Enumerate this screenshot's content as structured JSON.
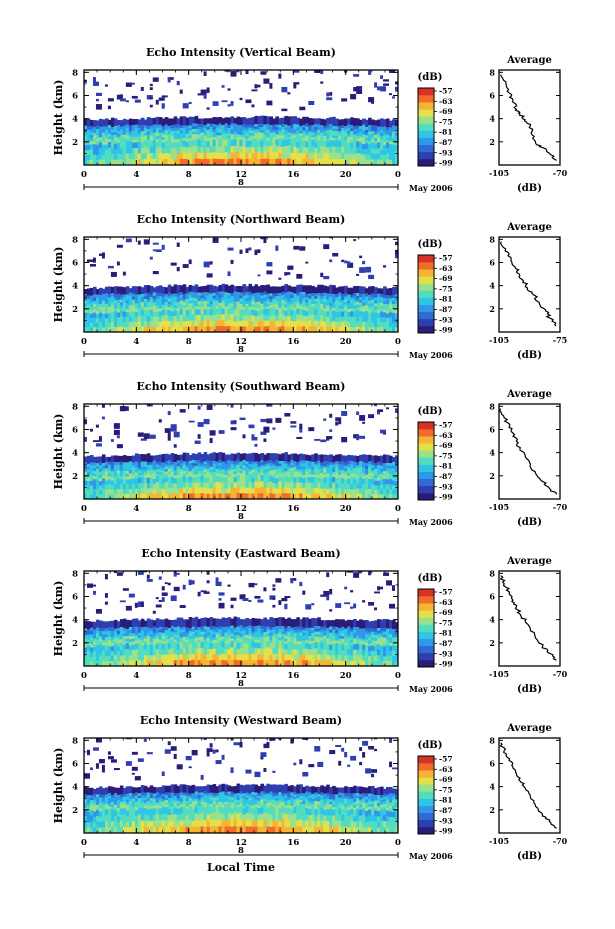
{
  "chart_data": [
    {
      "type": "heatmap",
      "title": "Echo Intensity (Vertical Beam)",
      "ylabel": "Height (km)",
      "x_ticks": [
        "0",
        "4",
        "8",
        "12",
        "16",
        "20",
        "0"
      ],
      "y_ticks": [
        "2",
        "4",
        "6",
        "8"
      ],
      "date_label": "8",
      "month_label": "May 2006",
      "colorbar": {
        "unit": "(dB)",
        "ticks": [
          "-57",
          "-63",
          "-69",
          "-75",
          "-81",
          "-87",
          "-93",
          "-99"
        ]
      },
      "layers": {
        "top_km": 3.9,
        "low_top_km": 3.3,
        "core_top_km": 1.8
      },
      "average": {
        "title": "Average",
        "xlabel": "(dB)",
        "x_ticks": [
          "-105",
          "-70"
        ],
        "y_ticks": [
          "2",
          "4",
          "6",
          "8"
        ],
        "profile": [
          [
            -72,
            0.4
          ],
          [
            -76,
            1.0
          ],
          [
            -80,
            1.5
          ],
          [
            -84,
            1.9
          ],
          [
            -86,
            2.6
          ],
          [
            -87,
            3.4
          ],
          [
            -90,
            3.9
          ],
          [
            -93,
            4.4
          ],
          [
            -95,
            4.8
          ],
          [
            -97,
            5.6
          ],
          [
            -99,
            6.2
          ],
          [
            -101,
            7.0
          ],
          [
            -104,
            7.8
          ]
        ]
      }
    },
    {
      "type": "heatmap",
      "title": "Echo Intensity (Northward Beam)",
      "ylabel": "Height (km)",
      "x_ticks": [
        "0",
        "4",
        "8",
        "12",
        "16",
        "20",
        "0"
      ],
      "y_ticks": [
        "2",
        "4",
        "6",
        "8"
      ],
      "date_label": "8",
      "month_label": "May 2006",
      "colorbar": {
        "unit": "(dB)",
        "ticks": [
          "-57",
          "-63",
          "-69",
          "-75",
          "-81",
          "-87",
          "-93",
          "-99"
        ]
      },
      "layers": {
        "top_km": 3.8,
        "low_top_km": 3.2,
        "core_top_km": 1.6
      },
      "average": {
        "title": "Average",
        "xlabel": "(dB)",
        "x_ticks": [
          "-105",
          "-75"
        ],
        "y_ticks": [
          "2",
          "4",
          "6",
          "8"
        ],
        "profile": [
          [
            -77,
            0.5
          ],
          [
            -80,
            1.2
          ],
          [
            -82,
            1.8
          ],
          [
            -85,
            2.4
          ],
          [
            -88,
            3.2
          ],
          [
            -91,
            3.8
          ],
          [
            -93,
            4.4
          ],
          [
            -95,
            5.0
          ],
          [
            -97,
            5.6
          ],
          [
            -99,
            6.3
          ],
          [
            -102,
            7.0
          ],
          [
            -104,
            7.8
          ]
        ]
      }
    },
    {
      "type": "heatmap",
      "title": "Echo Intensity (Southward Beam)",
      "ylabel": "Height (km)",
      "x_ticks": [
        "0",
        "4",
        "8",
        "12",
        "16",
        "20",
        "0"
      ],
      "y_ticks": [
        "2",
        "4",
        "6",
        "8"
      ],
      "date_label": "8",
      "month_label": "May 2006",
      "colorbar": {
        "unit": "(dB)",
        "ticks": [
          "-57",
          "-63",
          "-69",
          "-75",
          "-81",
          "-87",
          "-93",
          "-99"
        ]
      },
      "layers": {
        "top_km": 3.7,
        "low_top_km": 3.1,
        "core_top_km": 1.6
      },
      "average": {
        "title": "Average",
        "xlabel": "(dB)",
        "x_ticks": [
          "-105",
          "-70"
        ],
        "y_ticks": [
          "2",
          "4",
          "6",
          "8"
        ],
        "profile": [
          [
            -72,
            0.4
          ],
          [
            -76,
            0.9
          ],
          [
            -80,
            1.5
          ],
          [
            -84,
            2.2
          ],
          [
            -87,
            3.0
          ],
          [
            -90,
            3.8
          ],
          [
            -93,
            4.3
          ],
          [
            -95,
            5.0
          ],
          [
            -97,
            5.7
          ],
          [
            -99,
            6.3
          ],
          [
            -102,
            7.0
          ],
          [
            -104,
            7.8
          ]
        ]
      }
    },
    {
      "type": "heatmap",
      "title": "Echo Intensity (Eastward Beam)",
      "ylabel": "Height (km)",
      "x_ticks": [
        "0",
        "4",
        "8",
        "12",
        "16",
        "20",
        "0"
      ],
      "y_ticks": [
        "2",
        "4",
        "6",
        "8"
      ],
      "date_label": "8",
      "month_label": "May 2006",
      "colorbar": {
        "unit": "(dB)",
        "ticks": [
          "-57",
          "-63",
          "-69",
          "-75",
          "-81",
          "-87",
          "-93",
          "-99"
        ]
      },
      "layers": {
        "top_km": 3.9,
        "low_top_km": 3.2,
        "core_top_km": 1.7
      },
      "average": {
        "title": "Average",
        "xlabel": "(dB)",
        "x_ticks": [
          "-105",
          "-70"
        ],
        "y_ticks": [
          "2",
          "4",
          "6",
          "8"
        ],
        "profile": [
          [
            -72,
            0.5
          ],
          [
            -76,
            1.1
          ],
          [
            -80,
            1.7
          ],
          [
            -84,
            2.4
          ],
          [
            -87,
            3.2
          ],
          [
            -90,
            3.9
          ],
          [
            -93,
            4.5
          ],
          [
            -95,
            5.1
          ],
          [
            -97,
            5.7
          ],
          [
            -99,
            6.4
          ],
          [
            -102,
            7.1
          ],
          [
            -104,
            7.8
          ]
        ]
      }
    },
    {
      "type": "heatmap",
      "title": "Echo Intensity (Westward Beam)",
      "ylabel": "Height (km)",
      "x_ticks": [
        "0",
        "4",
        "8",
        "12",
        "16",
        "20",
        "0"
      ],
      "y_ticks": [
        "2",
        "4",
        "6",
        "8"
      ],
      "date_label": "8",
      "month_label": "May 2006",
      "colorbar": {
        "unit": "(dB)",
        "ticks": [
          "-57",
          "-63",
          "-69",
          "-75",
          "-81",
          "-87",
          "-93",
          "-99"
        ]
      },
      "layers": {
        "top_km": 3.9,
        "low_top_km": 3.3,
        "core_top_km": 1.9
      },
      "average": {
        "title": "Average",
        "xlabel": "(dB)",
        "x_ticks": [
          "-105",
          "-70"
        ],
        "y_ticks": [
          "2",
          "4",
          "6",
          "8"
        ],
        "profile": [
          [
            -72,
            0.4
          ],
          [
            -76,
            1.0
          ],
          [
            -80,
            1.6
          ],
          [
            -84,
            2.3
          ],
          [
            -87,
            3.1
          ],
          [
            -90,
            3.9
          ],
          [
            -93,
            4.5
          ],
          [
            -95,
            5.1
          ],
          [
            -97,
            5.7
          ],
          [
            -99,
            6.4
          ],
          [
            -102,
            7.1
          ],
          [
            -104,
            7.8
          ]
        ]
      }
    }
  ],
  "x_title": "Local Time",
  "colors": {
    "colormap": [
      "#2a1d7a",
      "#2f3fb0",
      "#2f6ad6",
      "#2f98e8",
      "#2fc6e6",
      "#52dcc0",
      "#9be08a",
      "#e3e04a",
      "#f7b432",
      "#f26b2a",
      "#d83226"
    ],
    "line": "#000000"
  }
}
